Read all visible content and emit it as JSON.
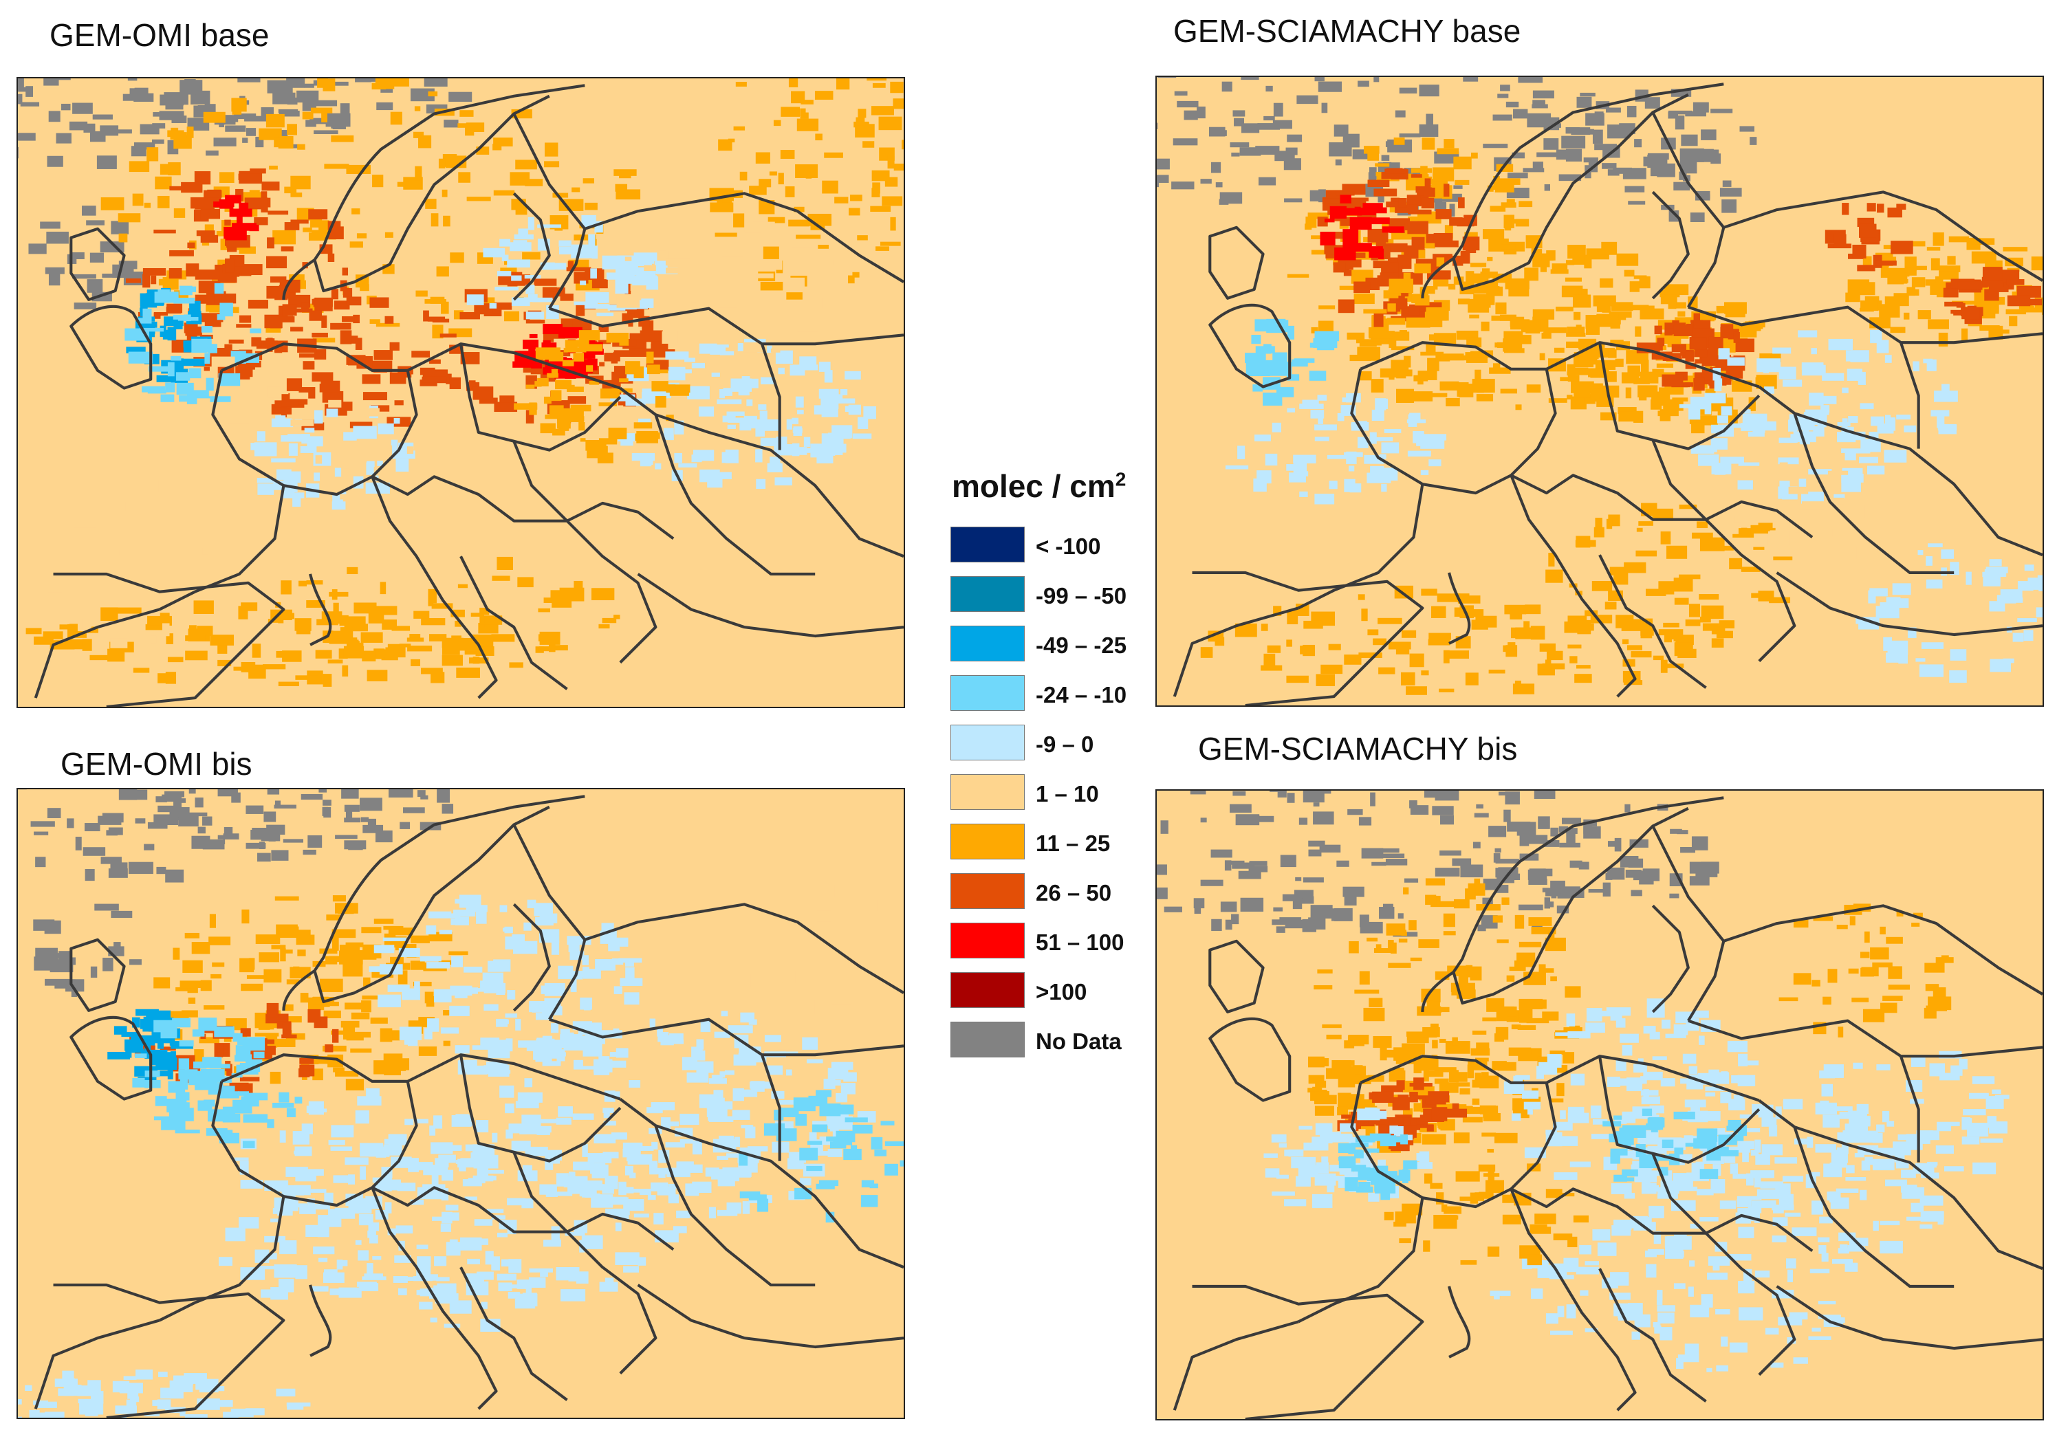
{
  "panels": {
    "omi_base": {
      "title": "GEM-OMI base"
    },
    "sciamachy_base": {
      "title": "GEM-SCIAMACHY base"
    },
    "omi_bis": {
      "title": "GEM-OMI bis"
    },
    "sciamachy_bis": {
      "title": "GEM-SCIAMACHY bis"
    }
  },
  "legend": {
    "title": "molec / cm",
    "title_sup": "2",
    "classes": [
      {
        "label": "< -100",
        "color": "#002573"
      },
      {
        "label": "-99 – -50",
        "color": "#0085ad"
      },
      {
        "label": "-49 – -25",
        "color": "#00a6e6"
      },
      {
        "label": "-24 – -10",
        "color": "#70d8fa"
      },
      {
        "label": "-9 – 0",
        "color": "#bee8fe"
      },
      {
        "label": "1 – 10",
        "color": "#fed58e"
      },
      {
        "label": "11 – 25",
        "color": "#fea902"
      },
      {
        "label": "26 – 50",
        "color": "#e34f07"
      },
      {
        "label": "51 – 100",
        "color": "#ff0000"
      },
      {
        "label": ">100",
        "color": "#a80000"
      },
      {
        "label": "No Data",
        "color": "#828282"
      }
    ]
  },
  "colors": {
    "background": "#fed58e",
    "border_lines": "#3a3a3a"
  }
}
